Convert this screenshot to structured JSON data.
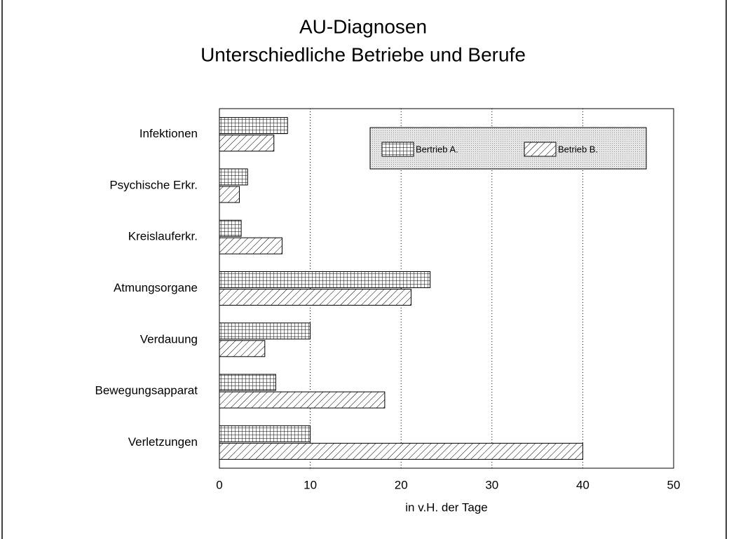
{
  "chart_data": {
    "type": "barh",
    "title": "AU-Diagnosen",
    "subtitle": "Unterschiedliche Betriebe und Berufe",
    "categories": [
      "Infektionen",
      "Psychische Erkr.",
      "Kreislauferkr.",
      "Atmungsorgane",
      "Verdauung",
      "Bewegungsapparat",
      "Verletzungen"
    ],
    "series": [
      {
        "name": "Bertrieb A.",
        "color": "#000000",
        "pattern": "grid",
        "values": [
          7.5,
          3.1,
          2.4,
          23.2,
          10.0,
          6.2,
          10.0
        ]
      },
      {
        "name": "Betrieb B.",
        "color": "#000000",
        "pattern": "hatch",
        "values": [
          6.0,
          2.2,
          6.9,
          21.1,
          5.0,
          18.2,
          40.0
        ]
      }
    ],
    "xlabel": "in v.H. der Tage",
    "xlim": [
      0,
      50
    ],
    "xticks": [
      0,
      10,
      20,
      30,
      40,
      50
    ],
    "grid": true,
    "legend": "top-right"
  }
}
